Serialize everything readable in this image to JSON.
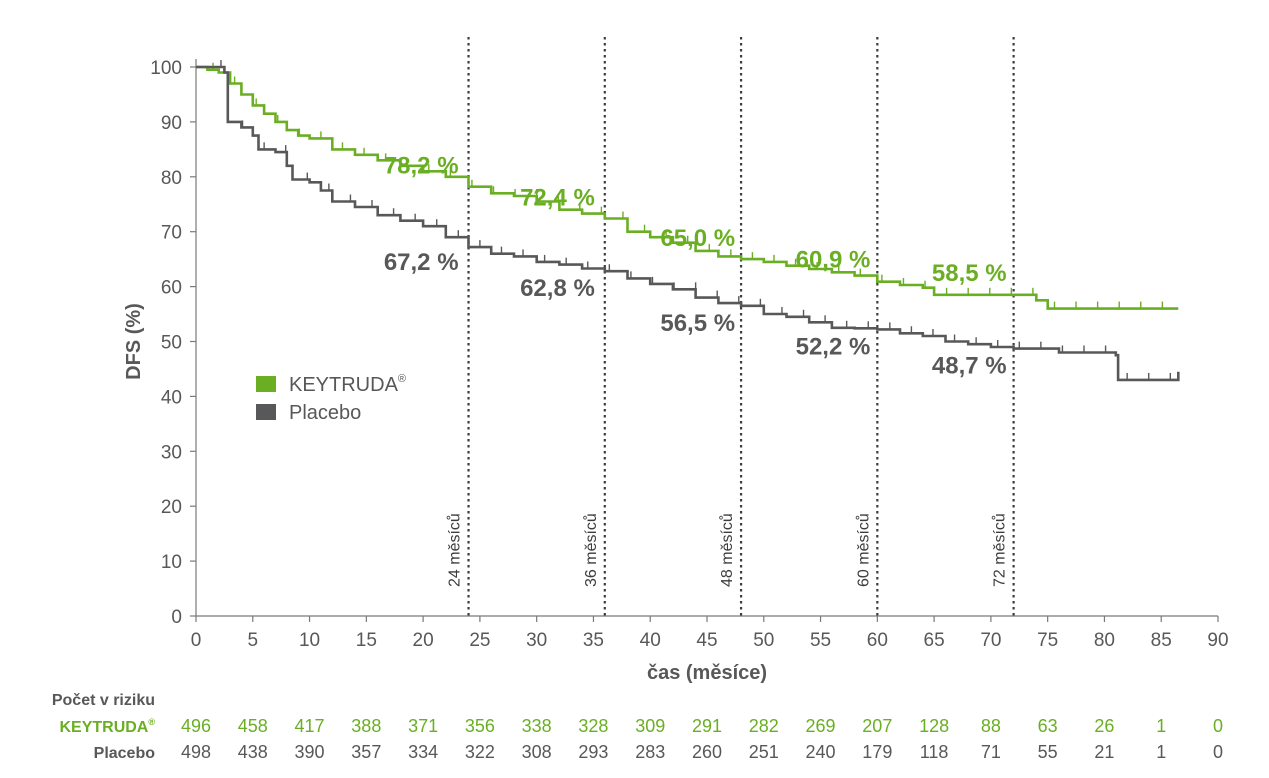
{
  "chart_data": {
    "type": "line",
    "subtype": "kaplan-meier",
    "ylabel": "DFS (%)",
    "xlabel": "čas (měsíce)",
    "xlim": [
      0,
      90
    ],
    "ylim": [
      0,
      100
    ],
    "xticks": [
      0,
      5,
      10,
      15,
      20,
      25,
      30,
      35,
      40,
      45,
      50,
      55,
      60,
      65,
      70,
      75,
      80,
      85,
      90
    ],
    "yticks": [
      0,
      10,
      20,
      30,
      40,
      50,
      60,
      70,
      80,
      90,
      100
    ],
    "legend_position": "middle-left",
    "series": [
      {
        "name": "KEYTRUDA",
        "registered": "®",
        "color": "#6aaf23",
        "points": [
          [
            0,
            100
          ],
          [
            1,
            99.5
          ],
          [
            2,
            99
          ],
          [
            3,
            97
          ],
          [
            4,
            95
          ],
          [
            5,
            93
          ],
          [
            6,
            91.5
          ],
          [
            7,
            90
          ],
          [
            8,
            88.5
          ],
          [
            9,
            87.5
          ],
          [
            10,
            87
          ],
          [
            12,
            85
          ],
          [
            14,
            84
          ],
          [
            16,
            83
          ],
          [
            18,
            82
          ],
          [
            20,
            81
          ],
          [
            22,
            80
          ],
          [
            24,
            78.2
          ],
          [
            26,
            77
          ],
          [
            28,
            76.5
          ],
          [
            30,
            75.5
          ],
          [
            32,
            74
          ],
          [
            34,
            73.3
          ],
          [
            36,
            72.4
          ],
          [
            38,
            70
          ],
          [
            40,
            69
          ],
          [
            42,
            68
          ],
          [
            44,
            66.5
          ],
          [
            46,
            65.5
          ],
          [
            48,
            65
          ],
          [
            50,
            64.5
          ],
          [
            52,
            63.8
          ],
          [
            54,
            63.2
          ],
          [
            56,
            62.6
          ],
          [
            58,
            62
          ],
          [
            60,
            60.9
          ],
          [
            62,
            60.3
          ],
          [
            64,
            59.8
          ],
          [
            65,
            58.5
          ],
          [
            70,
            58.5
          ],
          [
            72,
            58.5
          ],
          [
            74,
            57.5
          ],
          [
            75,
            56
          ],
          [
            80,
            56
          ],
          [
            86.5,
            56
          ]
        ],
        "milestones": [
          {
            "x": 24,
            "label": "78,2 %"
          },
          {
            "x": 36,
            "label": "72,4 %"
          },
          {
            "x": 48,
            "label": "65,0 %"
          },
          {
            "x": 60,
            "label": "60,9 %"
          },
          {
            "x": 72,
            "label": "58,5 %"
          }
        ],
        "at_risk": [
          496,
          458,
          417,
          388,
          371,
          356,
          338,
          328,
          309,
          291,
          282,
          269,
          207,
          128,
          88,
          63,
          26,
          1,
          0
        ]
      },
      {
        "name": "Placebo",
        "color": "#58585a",
        "points": [
          [
            0,
            100
          ],
          [
            2.5,
            99
          ],
          [
            2.8,
            90
          ],
          [
            4,
            89
          ],
          [
            5,
            87.5
          ],
          [
            5.5,
            85
          ],
          [
            7,
            84.5
          ],
          [
            8,
            82
          ],
          [
            8.5,
            79.5
          ],
          [
            10,
            79
          ],
          [
            11,
            77.5
          ],
          [
            12,
            75.5
          ],
          [
            14,
            74.5
          ],
          [
            16,
            73
          ],
          [
            18,
            72
          ],
          [
            20,
            71
          ],
          [
            22,
            69
          ],
          [
            24,
            67.2
          ],
          [
            26,
            66
          ],
          [
            28,
            65.5
          ],
          [
            30,
            64.5
          ],
          [
            32,
            64
          ],
          [
            34,
            63.3
          ],
          [
            36,
            62.8
          ],
          [
            38,
            61.5
          ],
          [
            40,
            60.5
          ],
          [
            42,
            59.5
          ],
          [
            44,
            58
          ],
          [
            46,
            57
          ],
          [
            48,
            56.5
          ],
          [
            50,
            55
          ],
          [
            52,
            54.5
          ],
          [
            54,
            53.5
          ],
          [
            56,
            52.5
          ],
          [
            58,
            52.4
          ],
          [
            60,
            52.2
          ],
          [
            62,
            51.5
          ],
          [
            64,
            51
          ],
          [
            66,
            50
          ],
          [
            68,
            49.5
          ],
          [
            70,
            49
          ],
          [
            72,
            48.7
          ],
          [
            76,
            48
          ],
          [
            81,
            47.5
          ],
          [
            81.2,
            43
          ],
          [
            86.5,
            43
          ],
          [
            86.5,
            44.5
          ]
        ],
        "milestones": [
          {
            "x": 24,
            "label": "67,2 %"
          },
          {
            "x": 36,
            "label": "62,8 %"
          },
          {
            "x": 48,
            "label": "56,5 %"
          },
          {
            "x": 60,
            "label": "52,2 %"
          },
          {
            "x": 72,
            "label": "48,7 %"
          }
        ],
        "at_risk": [
          498,
          438,
          390,
          357,
          334,
          322,
          308,
          293,
          283,
          260,
          251,
          240,
          179,
          118,
          71,
          55,
          21,
          1,
          0
        ]
      }
    ],
    "reference_lines": [
      {
        "x": 24,
        "label": "24 měsíců"
      },
      {
        "x": 36,
        "label": "36 měsíců"
      },
      {
        "x": 48,
        "label": "48 měsíců"
      },
      {
        "x": 60,
        "label": "60 měsíců"
      },
      {
        "x": 72,
        "label": "72 měsíců"
      }
    ],
    "risk_table_title": "Počet v riziku"
  }
}
